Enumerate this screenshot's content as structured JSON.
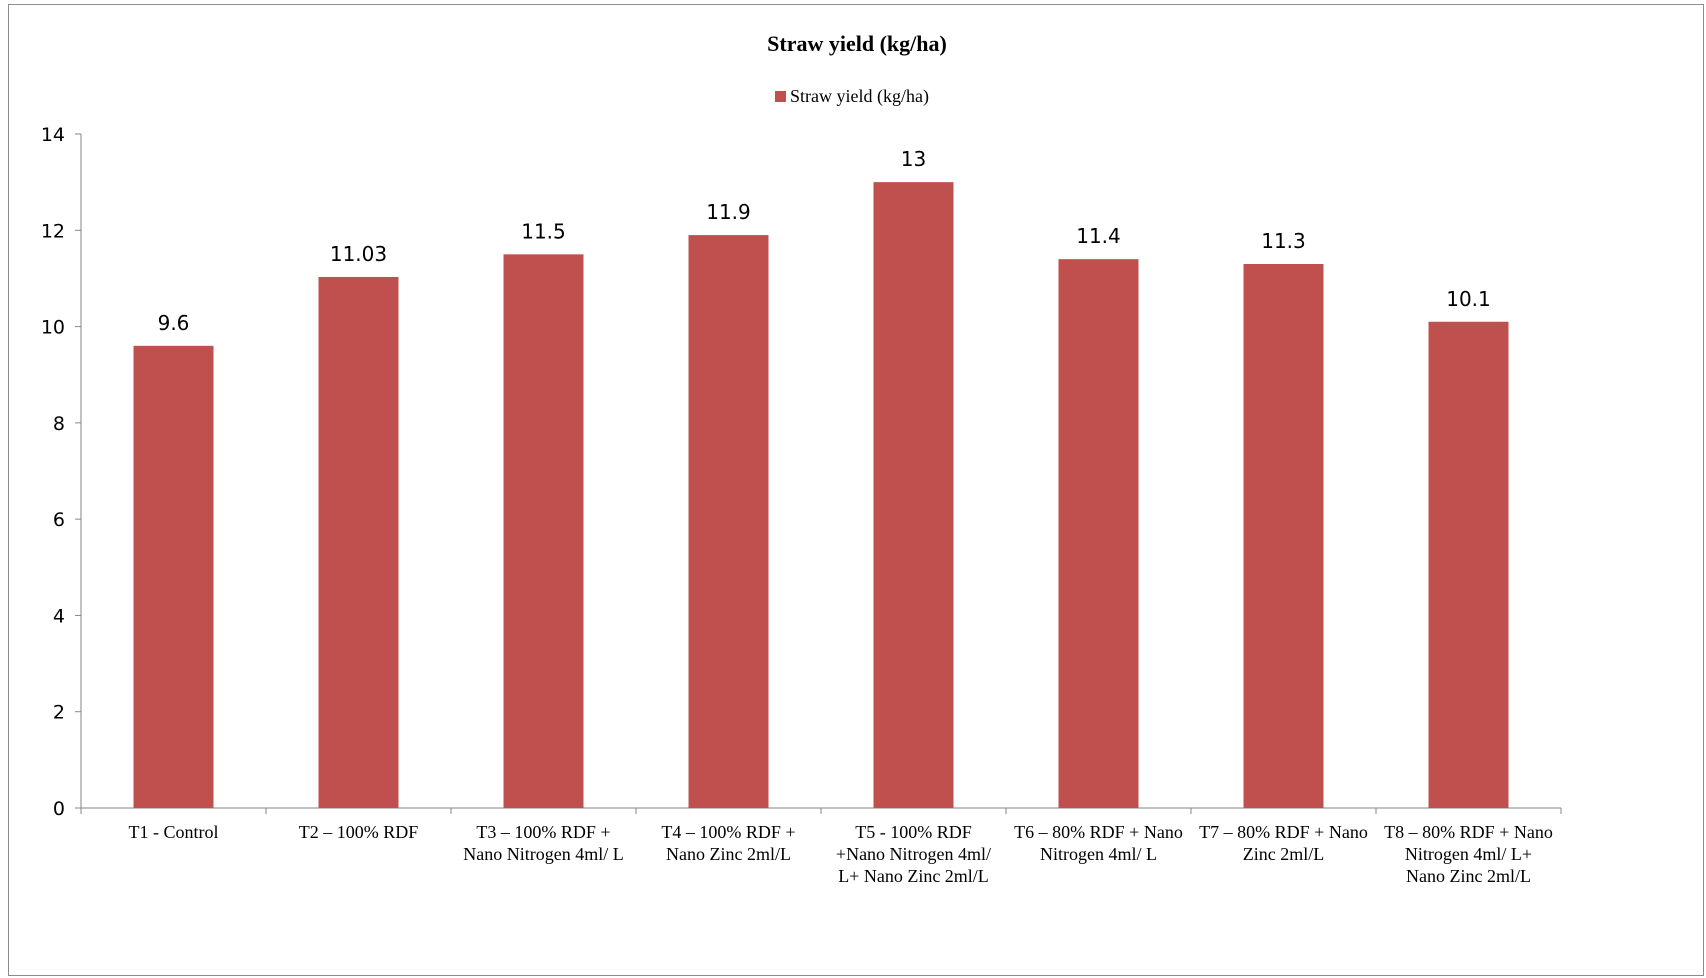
{
  "chart_data": {
    "type": "bar",
    "title": "Straw  yield (kg/ha)",
    "legend": {
      "position": "top",
      "entries": [
        "Straw  yield (kg/ha)"
      ]
    },
    "categories": [
      [
        "T1 - Control"
      ],
      [
        "T2 – 100% RDF"
      ],
      [
        "T3 – 100% RDF +",
        "Nano Nitrogen 4ml/ L"
      ],
      [
        "T4 – 100% RDF +",
        "Nano Zinc 2ml/L"
      ],
      [
        "T5 - 100% RDF",
        "+Nano Nitrogen 4ml/",
        "L+ Nano Zinc 2ml/L"
      ],
      [
        "T6 – 80% RDF + Nano",
        "Nitrogen 4ml/ L"
      ],
      [
        "T7 – 80% RDF + Nano",
        "Zinc 2ml/L"
      ],
      [
        "T8 – 80% RDF + Nano",
        "Nitrogen 4ml/ L+",
        "Nano Zinc 2ml/L"
      ]
    ],
    "series": [
      {
        "name": "Straw  yield (kg/ha)",
        "values": [
          9.6,
          11.03,
          11.5,
          11.9,
          13,
          11.4,
          11.3,
          10.1
        ],
        "labels": [
          "9.6",
          "11.03",
          "11.5",
          "11.9",
          "13",
          "11.4",
          "11.3",
          "10.1"
        ],
        "color": "#C0504D"
      }
    ],
    "ylim": [
      0,
      14
    ],
    "yticks": [
      0,
      2,
      4,
      6,
      8,
      10,
      12,
      14
    ],
    "grid": false,
    "xlabel": "",
    "ylabel": ""
  }
}
